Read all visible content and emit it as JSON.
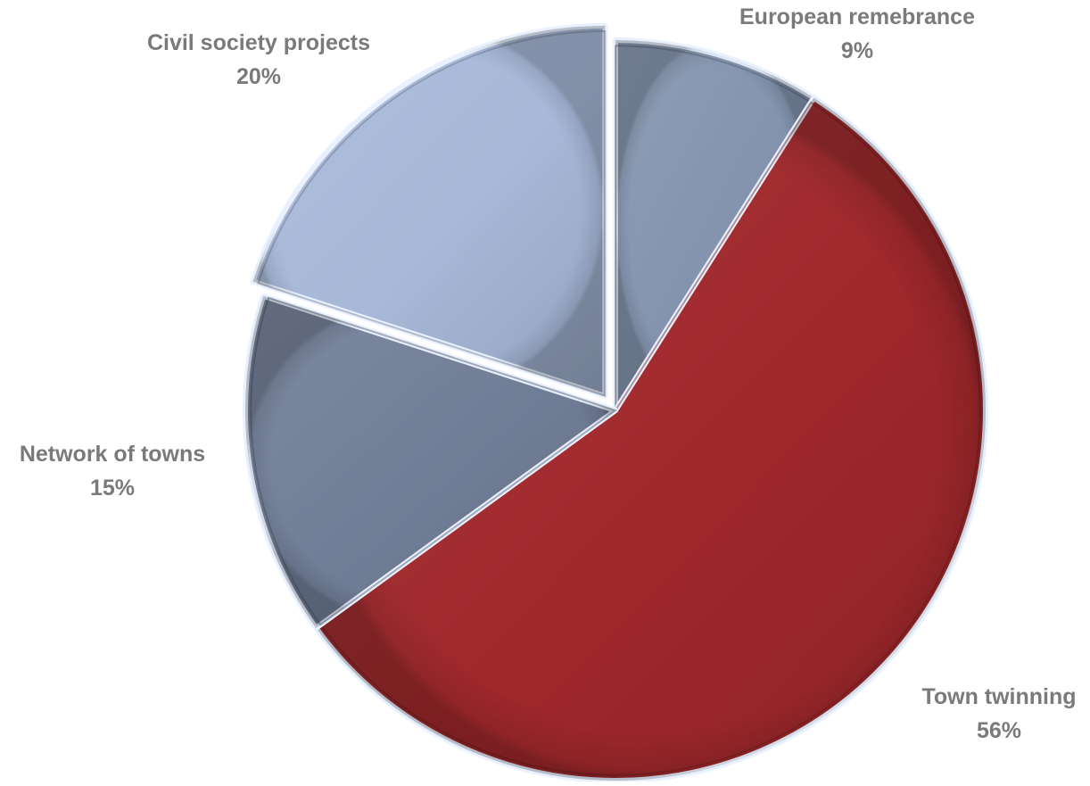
{
  "chart_data": {
    "type": "pie",
    "title": "",
    "slices": [
      {
        "label": "European remebrance",
        "value": 9,
        "value_label": "9%",
        "color": "#8393ae",
        "exploded": false
      },
      {
        "label": "Town twinning",
        "value": 56,
        "value_label": "56%",
        "color": "#a0282b",
        "exploded": false
      },
      {
        "label": "Network of towns",
        "value": 15,
        "value_label": "15%",
        "color": "#707d96",
        "exploded": false
      },
      {
        "label": "Civil society projects",
        "value": 20,
        "value_label": "20%",
        "color": "#a7b8d8",
        "exploded": true
      }
    ],
    "start_angle_deg": 0,
    "direction": "clockwise",
    "label_color": "#7a7a7a",
    "legend": "none",
    "style": "3d-bevel"
  }
}
